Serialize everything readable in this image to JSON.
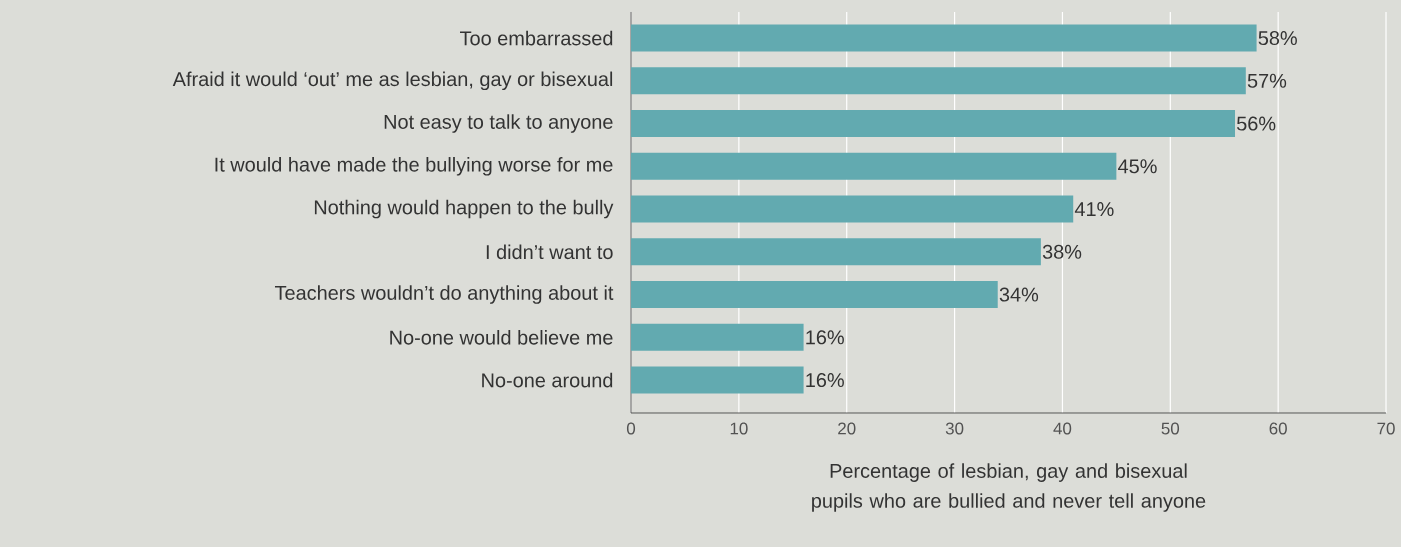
{
  "chart_data": {
    "type": "bar",
    "orientation": "horizontal",
    "categories": [
      "Too embarrassed",
      "Afraid it would ‘out’ me as lesbian, gay or bisexual",
      "Not easy to talk to anyone",
      "It would have made the bullying worse for me",
      "Nothing would happen to the bully",
      "I didn’t want to",
      "Teachers wouldn’t do anything about it",
      "No-one would believe me",
      "No-one around"
    ],
    "values": [
      58,
      57,
      56,
      45,
      41,
      38,
      34,
      16,
      16
    ],
    "value_labels": [
      "58%",
      "57%",
      "56%",
      "45%",
      "41%",
      "38%",
      "34%",
      "16%",
      "16%"
    ],
    "color": "#62aab0",
    "xlim": [
      0,
      70
    ],
    "xticks": [
      0,
      10,
      20,
      30,
      40,
      50,
      60,
      70
    ],
    "grid": "x",
    "xlabel": "Percentage of lesbian, gay and bisexual pupils who are bullied and never tell anyone"
  }
}
